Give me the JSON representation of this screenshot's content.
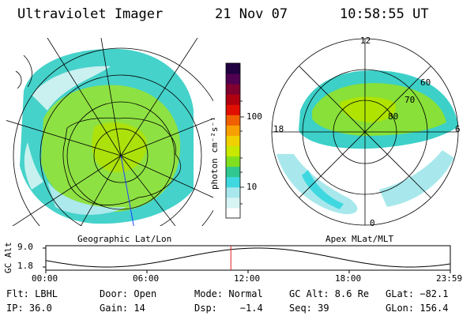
{
  "header": {
    "instrument": "Ultraviolet Imager",
    "date": "21 Nov 07",
    "time": "10:58:55 UT"
  },
  "left_panel": {
    "caption": "Geographic Lat/Lon"
  },
  "right_panel": {
    "caption": "Apex MLat/MLT",
    "mlt_labels": {
      "top": "12",
      "left": "18",
      "right": "6",
      "bottom": "0"
    },
    "lat_labels": [
      "60",
      "70",
      "80"
    ]
  },
  "colorbar": {
    "unit_label": "photon cm⁻²s⁻¹",
    "ticks": [
      "100",
      "10"
    ],
    "colors": [
      "#ffffff",
      "#d8f4f4",
      "#a8e8ec",
      "#40d8e0",
      "#30c890",
      "#80e020",
      "#c8e800",
      "#f0d000",
      "#f8a000",
      "#f06000",
      "#e01000",
      "#b00010",
      "#800030",
      "#500050",
      "#200040"
    ]
  },
  "timeline": {
    "axis_label": "GC Alt",
    "y_ticks": [
      "9.0",
      "1.8"
    ],
    "x_ticks": [
      "00:00",
      "06:00",
      "12:00",
      "18:00",
      "23:59"
    ],
    "current_marker_hour": 10.98,
    "marker_color": "#e02020"
  },
  "info": {
    "row1": [
      "Flt: LBHL",
      "Door: Open",
      "Mode: Normal",
      "GC Alt: 8.6 Re",
      "GLat: −82.1"
    ],
    "row2": [
      "IP: 36.0",
      "Gain: 14",
      "Dsp:    −1.4",
      "Seq: 39",
      "GLon: 156.4"
    ]
  }
}
